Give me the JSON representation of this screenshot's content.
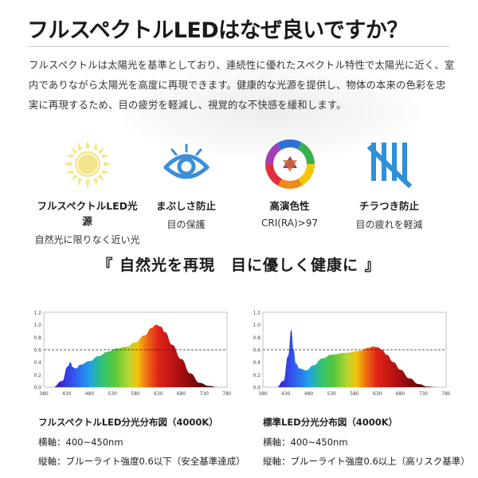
{
  "header": {
    "title": "フルスペクトルLEDはなぜ良いですか？",
    "intro": "フルスペクトルは太陽光を基準としており、連続性に優れたスペクトル特性で太陽光に近く、室内でありながら太陽光を高度に再現できます。健康的な光源を提供し、物体の本来の色彩を忠実に再現するため、目の疲労を軽減し、視覚的な不快感を緩和します。"
  },
  "features": [
    {
      "icon": "sun-icon",
      "name": "フルスペクトルLED光源",
      "desc": "自然光に限りなく近い光",
      "color": "#f3e58a"
    },
    {
      "icon": "eye-icon",
      "name": "まぶしさ防止",
      "desc": "目の保護",
      "color": "#3a8fd8"
    },
    {
      "icon": "color-wheel-icon",
      "name": "高演色性",
      "desc": "CRI(RA)>97",
      "color": "#e04a3c"
    },
    {
      "icon": "flicker-lines-icon",
      "name": "チラつき防止",
      "desc": "目の疲れを軽減",
      "color": "#2f8fd8"
    }
  ],
  "slogan": "『 自然光を再現　目に優しく健康に 』",
  "charts": {
    "y_ticks": [
      "1.2",
      "1.0",
      "0.8",
      "0.6",
      "0.4",
      "0.2",
      "0.0"
    ],
    "x_ticks": [
      "380",
      "430",
      "480",
      "530",
      "580",
      "630",
      "680",
      "730",
      "780"
    ],
    "threshold": 0.6
  },
  "chart_data": [
    {
      "type": "area",
      "title": "フルスペクトルLED分光分布図（4000K）",
      "xlabel": "横軸：400~450nm",
      "ylabel": "縦軸：ブルーライト強度0.6以下（安全基準達成）",
      "xlim": [
        380,
        780
      ],
      "ylim": [
        0,
        1.2
      ],
      "threshold": 0.6,
      "x": [
        400,
        420,
        432,
        438,
        443,
        450,
        460,
        480,
        500,
        520,
        540,
        560,
        580,
        600,
        615,
        625,
        635,
        645,
        660,
        680,
        700,
        720,
        740,
        760
      ],
      "y": [
        0.0,
        0.1,
        0.33,
        0.4,
        0.32,
        0.3,
        0.36,
        0.42,
        0.5,
        0.57,
        0.62,
        0.65,
        0.72,
        0.83,
        0.95,
        1.0,
        0.97,
        0.88,
        0.68,
        0.45,
        0.22,
        0.07,
        0.02,
        0.0
      ]
    },
    {
      "type": "area",
      "title": "標準LED分光分布図（4000K）",
      "xlabel": "横軸：400~450nm",
      "ylabel": "縦軸：ブルーライト強度0.6以上（高リスク基準）",
      "xlim": [
        380,
        780
      ],
      "ylim": [
        0,
        1.2
      ],
      "threshold": 0.6,
      "x": [
        410,
        425,
        435,
        442,
        447,
        452,
        460,
        475,
        490,
        510,
        530,
        560,
        590,
        610,
        620,
        630,
        640,
        650,
        665,
        680,
        700,
        720,
        740,
        760
      ],
      "y": [
        0.0,
        0.1,
        0.5,
        0.92,
        0.6,
        0.38,
        0.3,
        0.27,
        0.35,
        0.46,
        0.52,
        0.55,
        0.58,
        0.63,
        0.65,
        0.64,
        0.6,
        0.52,
        0.4,
        0.28,
        0.14,
        0.05,
        0.01,
        0.0
      ]
    }
  ]
}
